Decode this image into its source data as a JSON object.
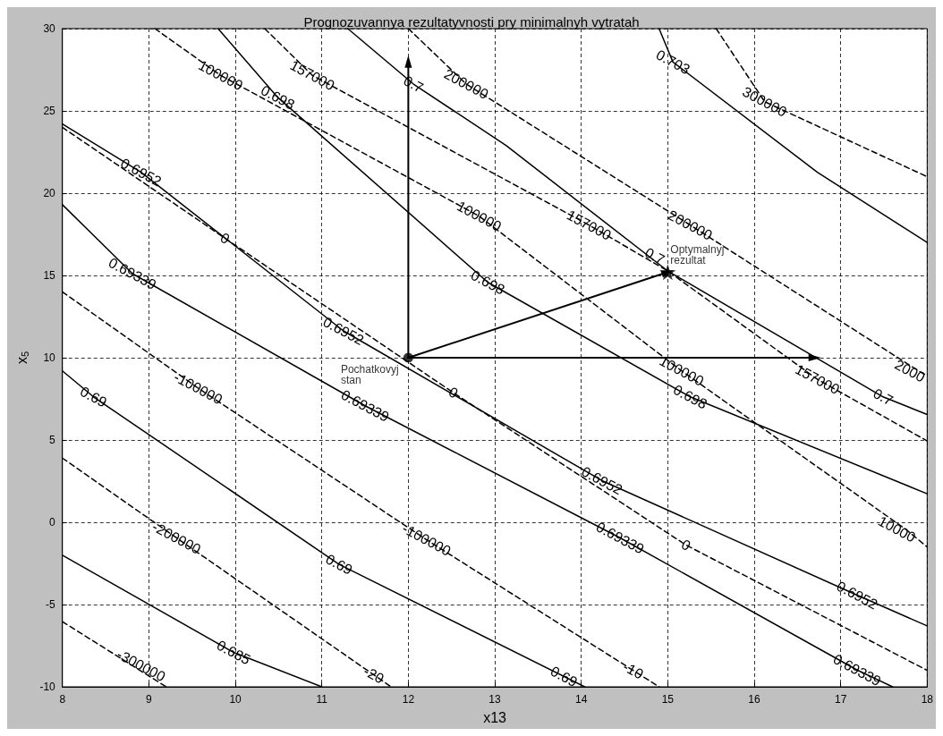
{
  "chart_data": {
    "type": "line",
    "title": "Prognozuvannya rezultatyvnosti pry minimalnyh vytratah",
    "xlabel": "x13",
    "ylabel": "x$_{5}$",
    "xlim": [
      8,
      18
    ],
    "xticks": [
      8,
      9,
      10,
      11,
      12,
      13,
      14,
      15,
      16,
      17,
      18
    ],
    "ylim": [
      -10,
      30
    ],
    "yticks": [
      -10,
      -5,
      0,
      5,
      10,
      15,
      20,
      25,
      30
    ],
    "grid": true,
    "series": [
      {
        "color": "#000000",
        "line_style": "solid",
        "x": [
          14.9,
          15.06,
          16.73,
          18
        ],
        "values": [
          30,
          27.97,
          21.27,
          17.0
        ]
      },
      {
        "color": "#000000",
        "line_style": "solid",
        "x": [
          11.3,
          12.06,
          13.13,
          15.0,
          17.49,
          18
        ],
        "values": [
          30,
          26.63,
          22.9,
          15.27,
          7.62,
          6.55
        ]
      },
      {
        "color": "#000000",
        "line_style": "solid",
        "x": [
          9.8,
          10.49,
          12.92,
          15.26,
          18
        ],
        "values": [
          30,
          25.82,
          14.58,
          7.62,
          1.73
        ]
      },
      {
        "color": "#000000",
        "line_style": "solid",
        "x": [
          8,
          8.91,
          11.25,
          14.24,
          17.19,
          18
        ],
        "values": [
          24.2,
          21.27,
          11.63,
          2.53,
          -4.43,
          -6.3
        ]
      },
      {
        "color": "#000000",
        "line_style": "solid",
        "x": [
          8,
          8.81,
          11.5,
          14.45,
          17.19,
          17.6
        ],
        "values": [
          19.3,
          15.11,
          7.08,
          -0.95,
          -8.98,
          -10
        ]
      },
      {
        "color": "#000000",
        "line_style": "solid",
        "x": [
          8,
          8.36,
          11.2,
          14.04
        ],
        "values": [
          9.2,
          7.62,
          -2.56,
          -10
        ]
      },
      {
        "color": "#000000",
        "line_style": "solid",
        "x": [
          8,
          9.98,
          11.0
        ],
        "values": [
          -2.0,
          -7.91,
          -10
        ]
      },
      {
        "color": "#000000",
        "line_style": "dashed",
        "x": [
          15.56,
          16.12,
          18
        ],
        "values": [
          30,
          25.56,
          21.0
        ]
      },
      {
        "color": "#000000",
        "line_style": "dashed",
        "x": [
          12.0,
          12.67,
          15.26,
          17.9,
          18
        ],
        "values": [
          30,
          26.63,
          18.06,
          9.2,
          8.9
        ]
      },
      {
        "color": "#000000",
        "line_style": "dashed",
        "x": [
          10.34,
          10.89,
          14.09,
          15.0,
          16.73,
          18
        ],
        "values": [
          30,
          27.16,
          18.06,
          15.27,
          8.69,
          4.94
        ]
      },
      {
        "color": "#000000",
        "line_style": "dashed",
        "x": [
          9.07,
          9.83,
          12.82,
          15.16,
          17.75,
          18
        ],
        "values": [
          30,
          27.16,
          18.6,
          9.2,
          -0.42,
          -1.5
        ]
      },
      {
        "color": "#000000",
        "line_style": "dashed",
        "x": [
          8,
          9.88,
          12.52,
          15.21,
          18
        ],
        "values": [
          24,
          17.26,
          7.88,
          -1.38,
          -9.0
        ]
      },
      {
        "color": "#000000",
        "line_style": "dashed",
        "x": [
          8,
          9.57,
          12.21,
          14.9
        ],
        "values": [
          14,
          8.15,
          -1.06,
          -10
        ]
      },
      {
        "color": "#000000",
        "line_style": "dashed",
        "x": [
          8,
          9.32,
          11.8
        ],
        "values": [
          3.9,
          -0.95,
          -10
        ]
      },
      {
        "color": "#000000",
        "line_style": "dashed",
        "x": [
          8,
          9.2
        ],
        "values": [
          -6.04,
          -10
        ]
      },
      {
        "color": "#000000",
        "line_style": "solid",
        "marker": "triangle",
        "x": [
          12,
          12
        ],
        "values": [
          10,
          28
        ]
      },
      {
        "color": "#000000",
        "line_style": "solid",
        "marker": "triangle",
        "x": [
          12,
          16.7
        ],
        "values": [
          10,
          10
        ]
      },
      {
        "color": "#000000",
        "line_style": "solid",
        "marker": "triangle",
        "x": [
          12,
          15
        ],
        "values": [
          10,
          15.2
        ]
      },
      {
        "type": "scatter",
        "name": "Pochatkovyj stan",
        "color": "#000000",
        "marker": "circle",
        "x": [
          12
        ],
        "values": [
          10
        ]
      },
      {
        "type": "scatter",
        "name": "Optymalnyj rezultat",
        "color": "#000000",
        "marker": "star",
        "x": [
          15
        ],
        "values": [
          15.2
        ]
      }
    ],
    "annotations": [
      {
        "text": "0.703",
        "x": 15.06,
        "y": 27.97
      },
      {
        "text": "0.7",
        "x": 12.06,
        "y": 26.63
      },
      {
        "text": "0.7",
        "x": 14.85,
        "y": 16.18
      },
      {
        "text": "0.7",
        "x": 17.49,
        "y": 7.62
      },
      {
        "text": "0.698",
        "x": 10.49,
        "y": 25.82
      },
      {
        "text": "0.698",
        "x": 12.92,
        "y": 14.58
      },
      {
        "text": "0.698",
        "x": 15.26,
        "y": 7.62
      },
      {
        "text": "0.6952",
        "x": 8.91,
        "y": 21.27
      },
      {
        "text": "0.6952",
        "x": 11.25,
        "y": 11.63
      },
      {
        "text": "0.6952",
        "x": 14.24,
        "y": 2.53
      },
      {
        "text": "0.6952",
        "x": 17.19,
        "y": -4.43
      },
      {
        "text": "0.69339",
        "x": 8.81,
        "y": 15.11
      },
      {
        "text": "0.69339",
        "x": 11.5,
        "y": 7.08
      },
      {
        "text": "0.69339",
        "x": 14.45,
        "y": -0.95
      },
      {
        "text": "0.69339",
        "x": 17.19,
        "y": -8.98
      },
      {
        "text": "0.69",
        "x": 8.36,
        "y": 7.62
      },
      {
        "text": "0.69",
        "x": 11.2,
        "y": -2.56
      },
      {
        "text": "0.69",
        "x": 13.8,
        "y": -9.37
      },
      {
        "text": "0.685",
        "x": 9.98,
        "y": -7.91
      },
      {
        "text": "300000",
        "x": 16.12,
        "y": 25.56
      },
      {
        "text": "200000",
        "x": 12.67,
        "y": 26.63
      },
      {
        "text": "200000",
        "x": 15.26,
        "y": 18.06
      },
      {
        "text": "2000",
        "x": 17.8,
        "y": 9.2
      },
      {
        "text": "157000",
        "x": 10.89,
        "y": 27.16
      },
      {
        "text": "157000",
        "x": 14.09,
        "y": 18.06
      },
      {
        "text": "157000",
        "x": 16.73,
        "y": 8.69
      },
      {
        "text": "100000",
        "x": 9.83,
        "y": 27.16
      },
      {
        "text": "100000",
        "x": 12.82,
        "y": 18.6
      },
      {
        "text": "100000",
        "x": 15.16,
        "y": 9.2
      },
      {
        "text": "10000",
        "x": 17.65,
        "y": -0.42
      },
      {
        "text": "0",
        "x": 9.88,
        "y": 17.26
      },
      {
        "text": "0",
        "x": 12.52,
        "y": 7.88
      },
      {
        "text": "0",
        "x": 15.21,
        "y": -1.38
      },
      {
        "text": "-100000",
        "x": 9.57,
        "y": 8.15
      },
      {
        "text": "-100000",
        "x": 12.21,
        "y": -1.06
      },
      {
        "text": "-10",
        "x": 14.6,
        "y": -9.0
      },
      {
        "text": "-200000",
        "x": 9.32,
        "y": -0.95
      },
      {
        "text": "-20",
        "x": 11.6,
        "y": -9.27
      },
      {
        "text": "-300000",
        "x": 8.91,
        "y": -8.7
      }
    ]
  }
}
